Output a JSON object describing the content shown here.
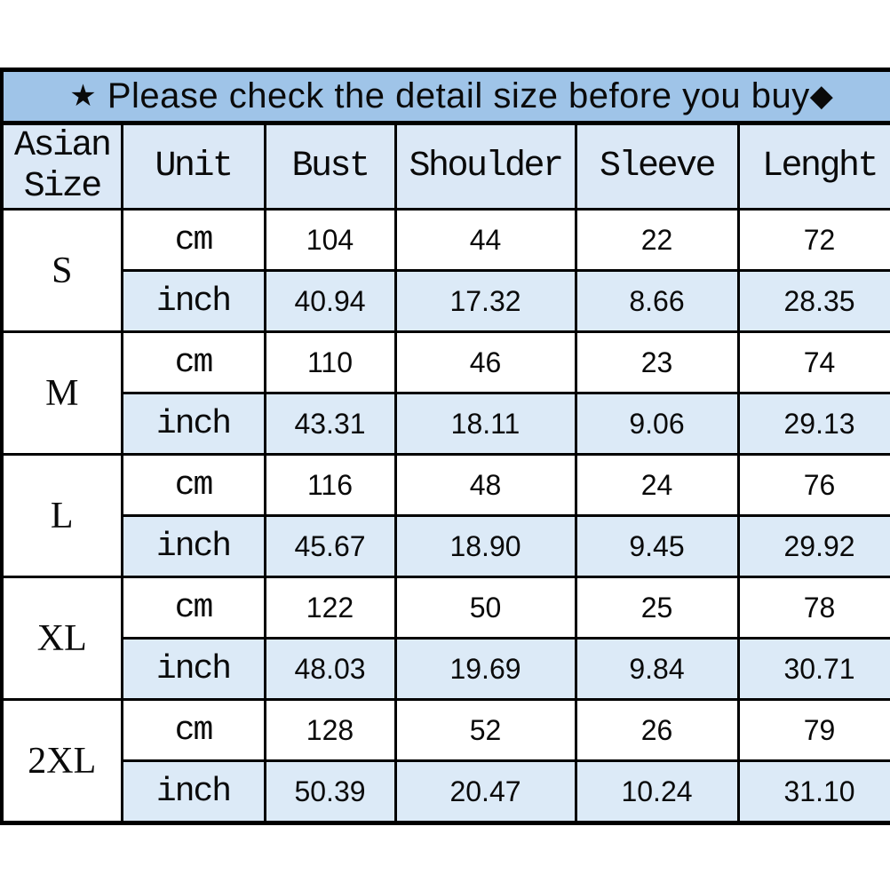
{
  "banner": {
    "star_icon": "★",
    "text": " Please check the detail size before you buy",
    "diamond_icon": "◆"
  },
  "table": {
    "headers": [
      "Asian Size",
      "Unit",
      "Bust",
      "Shoulder",
      "Sleeve",
      "Lenght"
    ],
    "unit_labels": {
      "cm": "cm",
      "inch": "inch"
    },
    "rows": [
      {
        "size": "S",
        "cm": [
          "104",
          "44",
          "22",
          "72"
        ],
        "inch": [
          "40.94",
          "17.32",
          "8.66",
          "28.35"
        ]
      },
      {
        "size": "M",
        "cm": [
          "110",
          "46",
          "23",
          "74"
        ],
        "inch": [
          "43.31",
          "18.11",
          "9.06",
          "29.13"
        ]
      },
      {
        "size": "L",
        "cm": [
          "116",
          "48",
          "24",
          "76"
        ],
        "inch": [
          "45.67",
          "18.90",
          "9.45",
          "29.92"
        ]
      },
      {
        "size": "XL",
        "cm": [
          "122",
          "50",
          "25",
          "78"
        ],
        "inch": [
          "48.03",
          "19.69",
          "9.84",
          "30.71"
        ]
      },
      {
        "size": "2XL",
        "cm": [
          "128",
          "52",
          "26",
          "79"
        ],
        "inch": [
          "50.39",
          "20.47",
          "10.24",
          "31.10"
        ]
      }
    ]
  },
  "colors": {
    "banner_bg": "#9fc4e8",
    "header_bg": "#dbe8f6",
    "inch_row_bg": "#dceaf7",
    "border": "#000000"
  }
}
